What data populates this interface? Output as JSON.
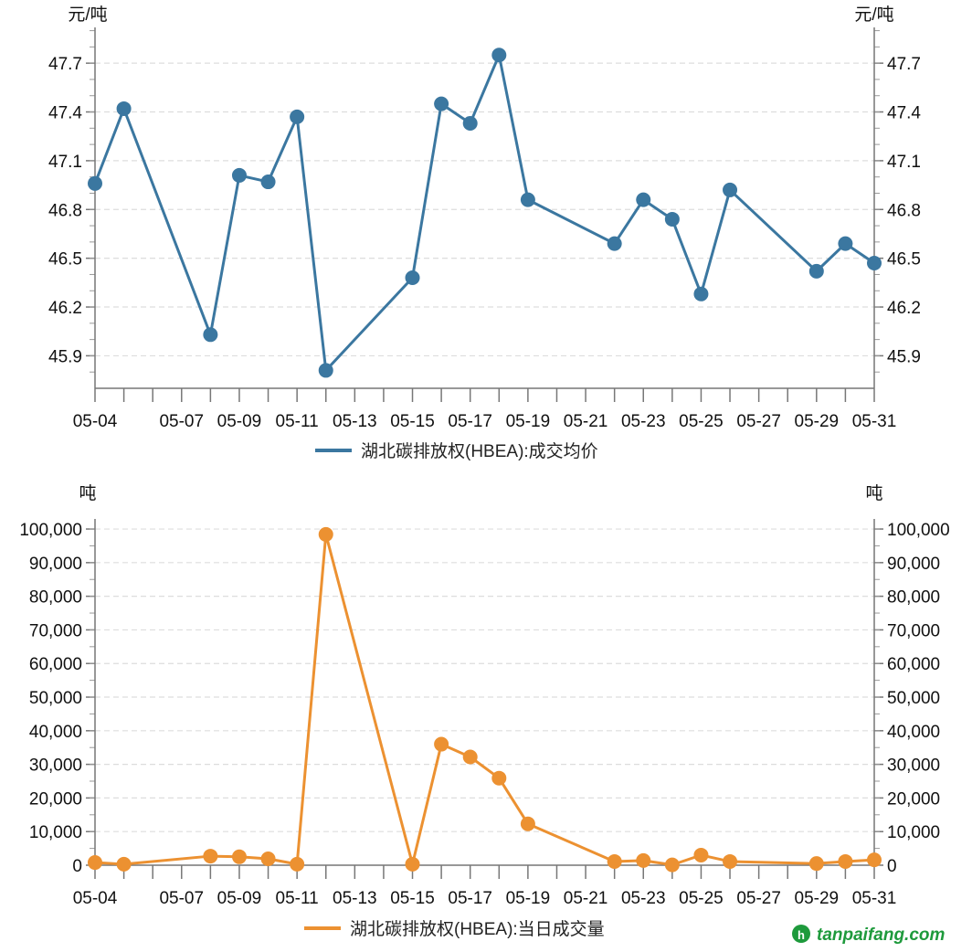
{
  "chart_data": [
    {
      "type": "line",
      "yunit_left": "元/吨",
      "yunit_right": "元/吨",
      "x": [
        "05-04",
        "05-05",
        "05-08",
        "05-09",
        "05-10",
        "05-11",
        "05-12",
        "05-15",
        "05-16",
        "05-17",
        "05-18",
        "05-19",
        "05-22",
        "05-23",
        "05-24",
        "05-25",
        "05-26",
        "05-29",
        "05-30",
        "05-31"
      ],
      "xticks_all": [
        "05-04",
        "05-05",
        "05-06",
        "05-07",
        "05-08",
        "05-09",
        "05-10",
        "05-11",
        "05-12",
        "05-13",
        "05-14",
        "05-15",
        "05-16",
        "05-17",
        "05-18",
        "05-19",
        "05-20",
        "05-21",
        "05-22",
        "05-23",
        "05-24",
        "05-25",
        "05-26",
        "05-27",
        "05-28",
        "05-29",
        "05-30",
        "05-31"
      ],
      "xtick_labels": [
        "05-04",
        "05-07",
        "05-09",
        "05-11",
        "05-13",
        "05-15",
        "05-17",
        "05-19",
        "05-21",
        "05-23",
        "05-25",
        "05-27",
        "05-29",
        "05-31"
      ],
      "yticks": [
        "45.9",
        "46.2",
        "46.5",
        "46.8",
        "47.1",
        "47.4",
        "47.7"
      ],
      "ylim": [
        45.7,
        47.92
      ],
      "grid": true,
      "legend_position": "bottom",
      "series": [
        {
          "name": "湖北碳排放权(HBEA):成交均价",
          "color": "#3b77a0",
          "values": [
            46.96,
            47.42,
            46.03,
            47.01,
            46.97,
            47.37,
            45.81,
            46.38,
            47.45,
            47.33,
            47.75,
            46.86,
            46.59,
            46.86,
            46.74,
            46.28,
            46.92,
            46.42,
            46.59,
            46.47
          ]
        }
      ]
    },
    {
      "type": "line",
      "yunit_left": "吨",
      "yunit_right": "吨",
      "x": [
        "05-04",
        "05-05",
        "05-08",
        "05-09",
        "05-10",
        "05-11",
        "05-12",
        "05-15",
        "05-16",
        "05-17",
        "05-18",
        "05-19",
        "05-22",
        "05-23",
        "05-24",
        "05-25",
        "05-26",
        "05-29",
        "05-30",
        "05-31"
      ],
      "xticks_all": [
        "05-04",
        "05-05",
        "05-06",
        "05-07",
        "05-08",
        "05-09",
        "05-10",
        "05-11",
        "05-12",
        "05-13",
        "05-14",
        "05-15",
        "05-16",
        "05-17",
        "05-18",
        "05-19",
        "05-20",
        "05-21",
        "05-22",
        "05-23",
        "05-24",
        "05-25",
        "05-26",
        "05-27",
        "05-28",
        "05-29",
        "05-30",
        "05-31"
      ],
      "xtick_labels": [
        "05-04",
        "05-07",
        "05-09",
        "05-11",
        "05-13",
        "05-15",
        "05-17",
        "05-19",
        "05-21",
        "05-23",
        "05-25",
        "05-27",
        "05-29",
        "05-31"
      ],
      "yticks": [
        "0",
        "10,000",
        "20,000",
        "30,000",
        "40,000",
        "50,000",
        "60,000",
        "70,000",
        "80,000",
        "90,000",
        "100,000"
      ],
      "ylim": [
        0,
        103000
      ],
      "grid": true,
      "legend_position": "bottom",
      "series": [
        {
          "name": "湖北碳排放权(HBEA):当日成交量",
          "color": "#ec9131",
          "values": [
            800,
            300,
            2700,
            2500,
            1900,
            300,
            98400,
            300,
            36000,
            32200,
            25900,
            12300,
            1100,
            1400,
            100,
            3000,
            1100,
            500,
            1100,
            1600
          ]
        }
      ]
    }
  ],
  "watermark": "tanpaifang.com"
}
